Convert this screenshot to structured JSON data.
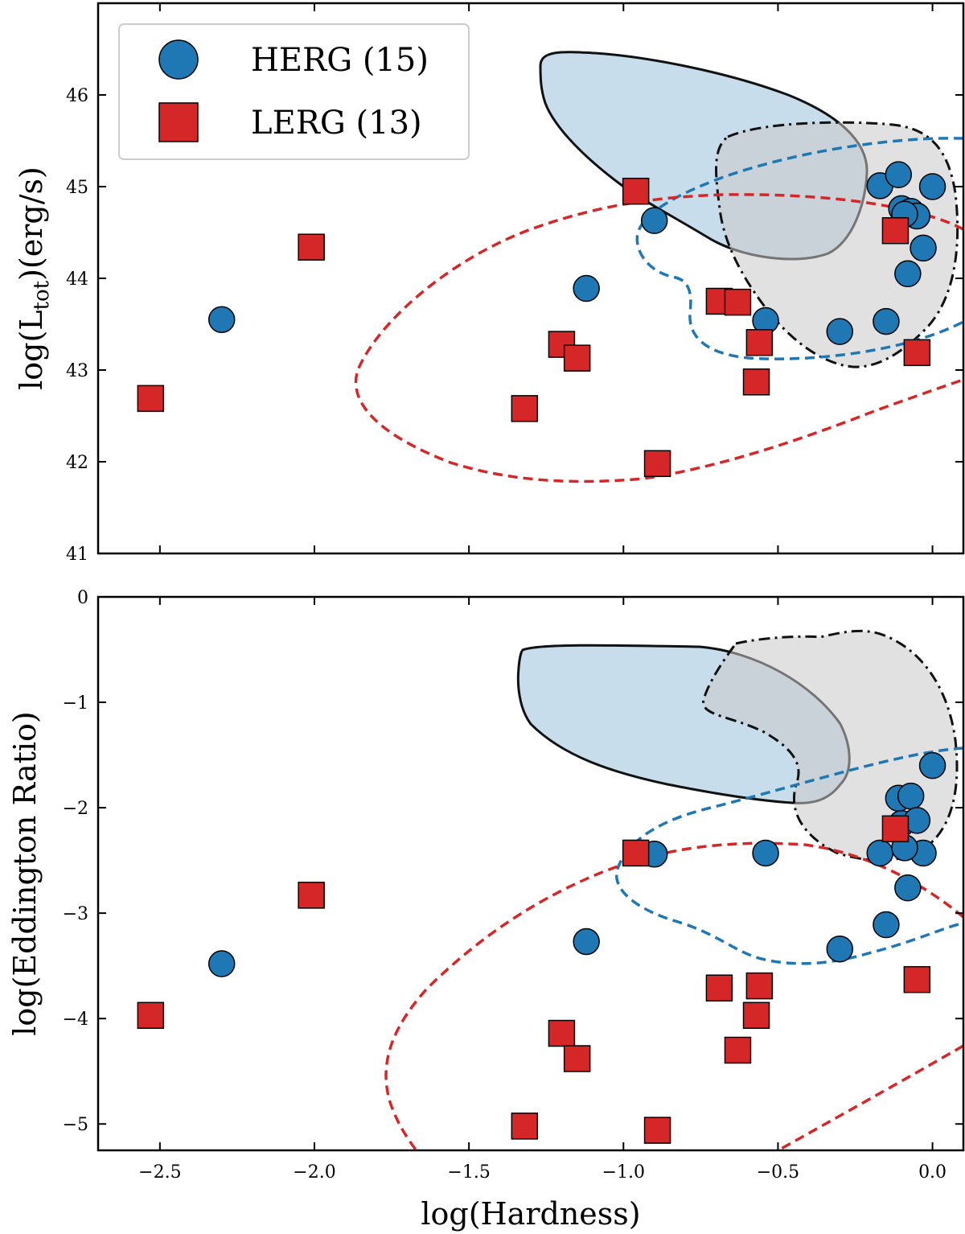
{
  "chart_data": [
    {
      "type": "scatter",
      "panel": "top",
      "ylabel": "log(L_tot)(erg/s)",
      "ylabel_main": "log(L",
      "ylabel_sub": "tot",
      "ylabel_tail": ")(erg/s)",
      "xlim": [
        -2.7,
        0.1
      ],
      "ylim": [
        41,
        47
      ],
      "yticks": [
        41,
        42,
        43,
        44,
        45,
        46
      ],
      "ytick_labels": [
        "41",
        "42",
        "43",
        "44",
        "45",
        "46"
      ],
      "legend": {
        "position": "top-left",
        "entries": [
          {
            "label": "HERG (15)",
            "marker": "circle",
            "color": "#1f77b4"
          },
          {
            "label": "LERG (13)",
            "marker": "square",
            "color": "#d62728"
          }
        ]
      },
      "series": [
        {
          "name": "HERG (15)",
          "marker": "circle",
          "color": "#1f77b4",
          "x": [
            -2.3,
            -1.12,
            -0.9,
            -0.54,
            -0.3,
            -0.15,
            -0.17,
            -0.11,
            -0.1,
            -0.07,
            -0.05,
            -0.03,
            -0.08,
            -0.09,
            0.0
          ],
          "y": [
            43.55,
            43.89,
            44.63,
            43.54,
            43.42,
            43.53,
            45.01,
            45.13,
            44.76,
            44.73,
            44.68,
            44.33,
            44.05,
            44.7,
            45.0
          ]
        },
        {
          "name": "LERG (13)",
          "marker": "square",
          "color": "#d62728",
          "x": [
            -2.53,
            -2.01,
            -1.32,
            -1.2,
            -1.15,
            -0.96,
            -0.89,
            -0.69,
            -0.63,
            -0.57,
            -0.56,
            -0.12,
            -0.05
          ],
          "y": [
            42.69,
            44.34,
            42.58,
            43.28,
            43.13,
            44.95,
            41.98,
            43.75,
            43.74,
            42.87,
            43.3,
            44.52,
            43.19
          ]
        }
      ]
    },
    {
      "type": "scatter",
      "panel": "bottom",
      "xlabel": "log(Hardness)",
      "ylabel": "log(Eddington Ratio)",
      "xlim": [
        -2.7,
        0.1
      ],
      "ylim": [
        -5.25,
        0
      ],
      "xticks": [
        -2.5,
        -2.0,
        -1.5,
        -1.0,
        -0.5,
        0.0
      ],
      "xtick_labels": [
        "−2.5",
        "−2.0",
        "−1.5",
        "−1.0",
        "−0.5",
        "0.0"
      ],
      "yticks": [
        -5,
        -4,
        -3,
        -2,
        -1,
        0
      ],
      "ytick_labels": [
        "−5",
        "−4",
        "−3",
        "−2",
        "−1",
        "0"
      ],
      "series": [
        {
          "name": "HERG (15)",
          "marker": "circle",
          "color": "#1f77b4",
          "x": [
            -2.3,
            -1.12,
            -0.9,
            -0.54,
            -0.3,
            -0.15,
            -0.17,
            -0.11,
            -0.1,
            -0.07,
            -0.05,
            -0.03,
            -0.08,
            -0.09,
            0.0
          ],
          "y": [
            -3.48,
            -3.27,
            -2.44,
            -2.43,
            -3.34,
            -3.11,
            -2.43,
            -1.91,
            -2.15,
            -1.89,
            -2.12,
            -2.43,
            -2.76,
            -2.38,
            -1.6
          ]
        },
        {
          "name": "LERG (13)",
          "marker": "square",
          "color": "#d62728",
          "x": [
            -2.53,
            -2.01,
            -1.32,
            -1.2,
            -1.15,
            -0.96,
            -0.89,
            -0.69,
            -0.63,
            -0.57,
            -0.56,
            -0.12,
            -0.05
          ],
          "y": [
            -3.97,
            -2.83,
            -5.02,
            -4.14,
            -4.38,
            -2.43,
            -5.06,
            -3.71,
            -4.3,
            -3.97,
            -3.69,
            -2.2,
            -3.63
          ]
        }
      ]
    }
  ]
}
